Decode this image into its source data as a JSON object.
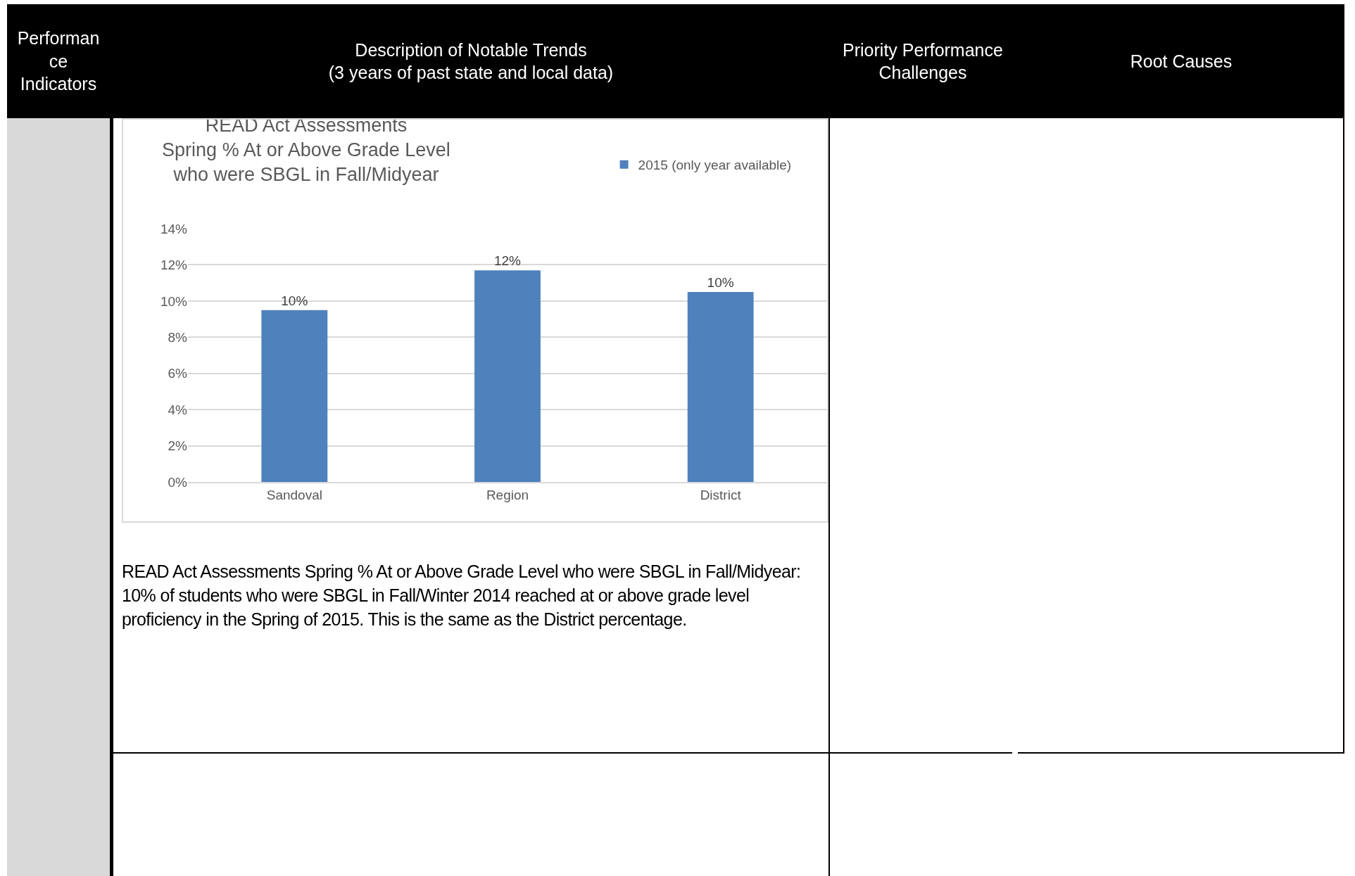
{
  "chart_data": {
    "type": "bar",
    "title": "READ Act Assessments\nSpring % At or Above Grade Level\nwho were SBGL in Fall/Midyear",
    "categories": [
      "Sandoval",
      "Region",
      "District"
    ],
    "series": [
      {
        "name": "2015 (only year available)",
        "color": "#4f81bd",
        "values": [
          9.5,
          11.7,
          10.5
        ],
        "value_labels": [
          "10%",
          "12%",
          "10%"
        ]
      }
    ],
    "ylim": [
      0,
      14
    ],
    "yticks": [
      {
        "value": 0,
        "label": "0%"
      },
      {
        "value": 2,
        "label": "2%"
      },
      {
        "value": 4,
        "label": "4%"
      },
      {
        "value": 6,
        "label": "6%"
      },
      {
        "value": 8,
        "label": "8%"
      },
      {
        "value": 10,
        "label": "10%"
      },
      {
        "value": 12,
        "label": "12%"
      },
      {
        "value": 14,
        "label": "14%"
      }
    ],
    "grid": "y",
    "legend": "top right",
    "annotations": [
      "Performance Indicators",
      "Description of Notable Trends\n(3 years of past state and local data)",
      "Priority Performance\nChallenges",
      "Root Causes",
      "READ Act Assessments Spring % At or Above Grade Level who were SBGL in Fall/Midyear: 10% of students who were SBGL in Fall/Winter 2014 reached at or above grade level proficiency in the Spring of 2015.  This is the same as the District percentage."
    ]
  }
}
